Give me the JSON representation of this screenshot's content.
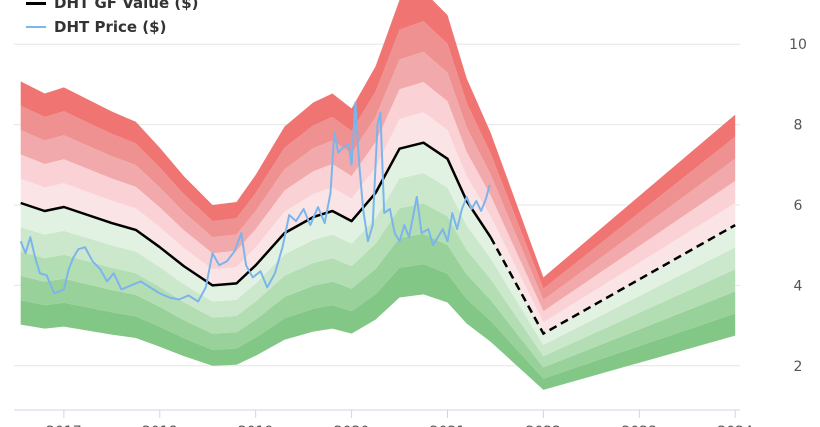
{
  "chart_data": {
    "type": "line",
    "title": "",
    "xlabel": "",
    "ylabel": "",
    "legend": {
      "placement": "top-left",
      "entries": [
        {
          "label": "DHT GF Value ($)",
          "color": "#000000"
        },
        {
          "label": "DHT Price ($)",
          "color": "#7cb5ec"
        }
      ]
    },
    "y_axis": {
      "side": "right",
      "ylim": [
        0.9,
        11.1
      ],
      "ticks": [
        "2",
        "4",
        "6",
        "8",
        "10"
      ]
    },
    "x_axis": {
      "xlim": [
        2016.48,
        2024.05
      ],
      "ticks": [
        "2017",
        "2018",
        "2019",
        "2020",
        "2021",
        "2022",
        "2023",
        "2024"
      ]
    },
    "grid": true,
    "series": [
      {
        "name": "DHT GF Value ($)",
        "style": "solid-then-dashed",
        "projection_from": 2021.45,
        "points": [
          [
            2016.55,
            6.05
          ],
          [
            2016.8,
            5.85
          ],
          [
            2017.0,
            5.95
          ],
          [
            2017.5,
            5.55
          ],
          [
            2017.75,
            5.38
          ],
          [
            2018.0,
            4.95
          ],
          [
            2018.25,
            4.48
          ],
          [
            2018.55,
            4.0
          ],
          [
            2018.8,
            4.05
          ],
          [
            2019.0,
            4.5
          ],
          [
            2019.3,
            5.3
          ],
          [
            2019.6,
            5.7
          ],
          [
            2019.8,
            5.85
          ],
          [
            2020.0,
            5.6
          ],
          [
            2020.25,
            6.3
          ],
          [
            2020.5,
            7.4
          ],
          [
            2020.75,
            7.55
          ],
          [
            2021.0,
            7.15
          ],
          [
            2021.2,
            6.1
          ],
          [
            2021.45,
            5.2
          ],
          [
            2022.0,
            2.8
          ],
          [
            2024.0,
            5.5
          ]
        ]
      },
      {
        "name": "DHT Price ($)",
        "points": [
          [
            2016.55,
            5.1
          ],
          [
            2016.6,
            4.8
          ],
          [
            2016.65,
            5.2
          ],
          [
            2016.7,
            4.7
          ],
          [
            2016.75,
            4.3
          ],
          [
            2016.82,
            4.25
          ],
          [
            2016.9,
            3.8
          ],
          [
            2017.0,
            3.9
          ],
          [
            2017.05,
            4.4
          ],
          [
            2017.1,
            4.7
          ],
          [
            2017.15,
            4.9
          ],
          [
            2017.22,
            4.95
          ],
          [
            2017.3,
            4.6
          ],
          [
            2017.38,
            4.4
          ],
          [
            2017.45,
            4.1
          ],
          [
            2017.52,
            4.3
          ],
          [
            2017.6,
            3.9
          ],
          [
            2017.7,
            4.0
          ],
          [
            2017.8,
            4.1
          ],
          [
            2017.9,
            3.95
          ],
          [
            2018.0,
            3.8
          ],
          [
            2018.1,
            3.7
          ],
          [
            2018.2,
            3.65
          ],
          [
            2018.3,
            3.75
          ],
          [
            2018.4,
            3.6
          ],
          [
            2018.48,
            3.95
          ],
          [
            2018.55,
            4.8
          ],
          [
            2018.62,
            4.5
          ],
          [
            2018.7,
            4.6
          ],
          [
            2018.78,
            4.85
          ],
          [
            2018.85,
            5.3
          ],
          [
            2018.9,
            4.5
          ],
          [
            2018.97,
            4.2
          ],
          [
            2019.05,
            4.35
          ],
          [
            2019.12,
            3.95
          ],
          [
            2019.2,
            4.3
          ],
          [
            2019.28,
            4.95
          ],
          [
            2019.35,
            5.75
          ],
          [
            2019.42,
            5.6
          ],
          [
            2019.5,
            5.9
          ],
          [
            2019.57,
            5.5
          ],
          [
            2019.65,
            5.95
          ],
          [
            2019.72,
            5.55
          ],
          [
            2019.78,
            6.3
          ],
          [
            2019.82,
            7.8
          ],
          [
            2019.86,
            7.3
          ],
          [
            2019.92,
            7.45
          ],
          [
            2019.97,
            7.5
          ],
          [
            2020.0,
            7.0
          ],
          [
            2020.04,
            8.55
          ],
          [
            2020.08,
            7.0
          ],
          [
            2020.12,
            5.9
          ],
          [
            2020.17,
            5.1
          ],
          [
            2020.22,
            5.5
          ],
          [
            2020.27,
            8.0
          ],
          [
            2020.3,
            8.3
          ],
          [
            2020.34,
            5.8
          ],
          [
            2020.4,
            5.9
          ],
          [
            2020.45,
            5.3
          ],
          [
            2020.5,
            5.1
          ],
          [
            2020.55,
            5.5
          ],
          [
            2020.6,
            5.2
          ],
          [
            2020.68,
            6.2
          ],
          [
            2020.73,
            5.3
          ],
          [
            2020.8,
            5.4
          ],
          [
            2020.85,
            5.0
          ],
          [
            2020.9,
            5.2
          ],
          [
            2020.95,
            5.4
          ],
          [
            2021.0,
            5.1
          ],
          [
            2021.05,
            5.8
          ],
          [
            2021.1,
            5.4
          ],
          [
            2021.15,
            5.9
          ],
          [
            2021.2,
            6.2
          ],
          [
            2021.25,
            5.9
          ],
          [
            2021.3,
            6.1
          ],
          [
            2021.35,
            5.85
          ],
          [
            2021.4,
            6.15
          ],
          [
            2021.44,
            6.5
          ]
        ]
      }
    ],
    "bands": {
      "lower_colors": [
        "#82c785",
        "#98d19a",
        "#b3deb4",
        "#cce8cc",
        "#e2f2e2"
      ],
      "upper_colors": [
        "#fbe4e6",
        "#fad2d5",
        "#f2a9ab",
        "#ef9191",
        "#f07472"
      ],
      "upper_multipliers": [
        1.1,
        1.2,
        1.3,
        1.4,
        1.5
      ],
      "lower_multipliers": [
        0.9,
        0.8,
        0.7,
        0.6,
        0.5
      ]
    }
  }
}
